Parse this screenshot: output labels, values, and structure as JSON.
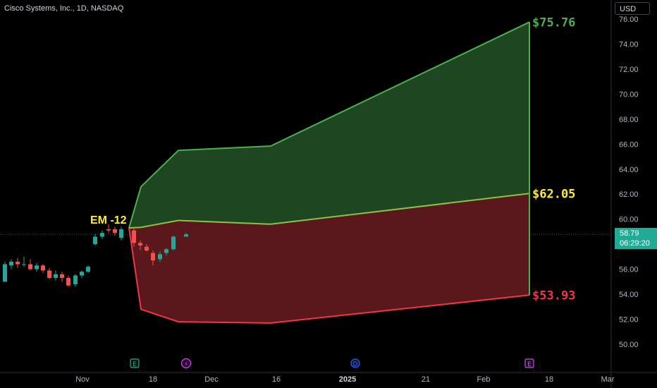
{
  "title": "Cisco Systems, Inc., 1D, NASDAQ",
  "currency_button": "USD",
  "last_price": "58.79",
  "countdown": "06:29:20",
  "colors": {
    "background": "#000000",
    "bull_candle": "#26a69a",
    "bear_candle": "#ef5350",
    "upper_zone": "#1e4620",
    "lower_zone": "#5a171c",
    "upper_line": "#4caf50",
    "lower_line": "#f23645",
    "mid_line": "#8bc34a",
    "label_green": "#4caf50",
    "label_yellow": "#ffeb3b",
    "label_red": "#f23645"
  },
  "chart_data": {
    "type": "candlestick",
    "title": "Cisco Systems, Inc., 1D, NASDAQ",
    "ylim": [
      48.6,
      77.0
    ],
    "y_ticks": [
      "50.00",
      "52.00",
      "54.00",
      "56.00",
      "58.00",
      "60.00",
      "62.00",
      "64.00",
      "66.00",
      "68.00",
      "70.00",
      "72.00",
      "74.00",
      "76.00"
    ],
    "x_ticks": [
      "Nov",
      "18",
      "Dec",
      "16",
      "2025",
      "21",
      "Feb",
      "18",
      "Mar"
    ],
    "candles": [
      {
        "o": 55.0,
        "h": 56.6,
        "l": 55.0,
        "c": 56.4
      },
      {
        "o": 56.3,
        "h": 56.8,
        "l": 56.0,
        "c": 56.6
      },
      {
        "o": 56.6,
        "h": 56.9,
        "l": 56.1,
        "c": 56.4
      },
      {
        "o": 56.4,
        "h": 57.0,
        "l": 56.2,
        "c": 56.4
      },
      {
        "o": 56.4,
        "h": 56.8,
        "l": 55.9,
        "c": 56.0
      },
      {
        "o": 56.0,
        "h": 56.5,
        "l": 55.8,
        "c": 56.3
      },
      {
        "o": 56.3,
        "h": 56.4,
        "l": 55.7,
        "c": 55.9
      },
      {
        "o": 55.9,
        "h": 56.1,
        "l": 55.2,
        "c": 55.3
      },
      {
        "o": 55.3,
        "h": 55.9,
        "l": 55.1,
        "c": 55.6
      },
      {
        "o": 55.6,
        "h": 55.8,
        "l": 55.0,
        "c": 55.3
      },
      {
        "o": 55.3,
        "h": 55.5,
        "l": 54.6,
        "c": 54.7
      },
      {
        "o": 54.8,
        "h": 55.6,
        "l": 54.6,
        "c": 55.5
      },
      {
        "o": 55.5,
        "h": 55.9,
        "l": 55.3,
        "c": 55.8
      },
      {
        "o": 55.8,
        "h": 56.3,
        "l": 55.7,
        "c": 56.2
      },
      {
        "o": 58.0,
        "h": 58.8,
        "l": 57.9,
        "c": 58.6
      },
      {
        "o": 58.6,
        "h": 59.1,
        "l": 58.4,
        "c": 58.9
      },
      {
        "o": 59.2,
        "h": 59.6,
        "l": 58.9,
        "c": 59.1
      },
      {
        "o": 59.2,
        "h": 59.4,
        "l": 58.7,
        "c": 58.9
      },
      {
        "o": 58.5,
        "h": 59.4,
        "l": 58.3,
        "c": 59.2
      },
      {
        "o": 59.1,
        "h": 59.3,
        "l": 57.8,
        "c": 58.1
      },
      {
        "o": 58.1,
        "h": 58.3,
        "l": 57.5,
        "c": 57.9
      },
      {
        "o": 57.8,
        "h": 58.0,
        "l": 57.4,
        "c": 57.5
      },
      {
        "o": 57.3,
        "h": 57.5,
        "l": 56.3,
        "c": 56.7
      },
      {
        "o": 56.8,
        "h": 57.4,
        "l": 56.6,
        "c": 57.2
      },
      {
        "o": 57.3,
        "h": 57.7,
        "l": 57.1,
        "c": 57.6
      },
      {
        "o": 57.6,
        "h": 58.7,
        "l": 57.5,
        "c": 58.6
      },
      {
        "o": 58.6,
        "h": 58.9,
        "l": 58.6,
        "c": 58.79
      }
    ],
    "expected_move": {
      "label": "EM -12",
      "upper": [
        59.3,
        62.6,
        65.5,
        65.85,
        75.76
      ],
      "mid": [
        59.3,
        59.35,
        59.9,
        59.6,
        62.05
      ],
      "lower": [
        59.3,
        52.8,
        51.8,
        51.7,
        53.93
      ],
      "upper_label": "$75.76",
      "mid_label": "$62.05",
      "lower_label": "$53.93"
    },
    "events": [
      {
        "symbol": "E",
        "type": "earnings",
        "color": "#26a69a"
      },
      {
        "symbol": "⚡",
        "type": "split",
        "color": "#e040fb"
      },
      {
        "symbol": "D",
        "type": "dividend",
        "color": "#2962ff"
      },
      {
        "symbol": "E",
        "type": "earnings",
        "color": "#e040fb"
      }
    ]
  }
}
